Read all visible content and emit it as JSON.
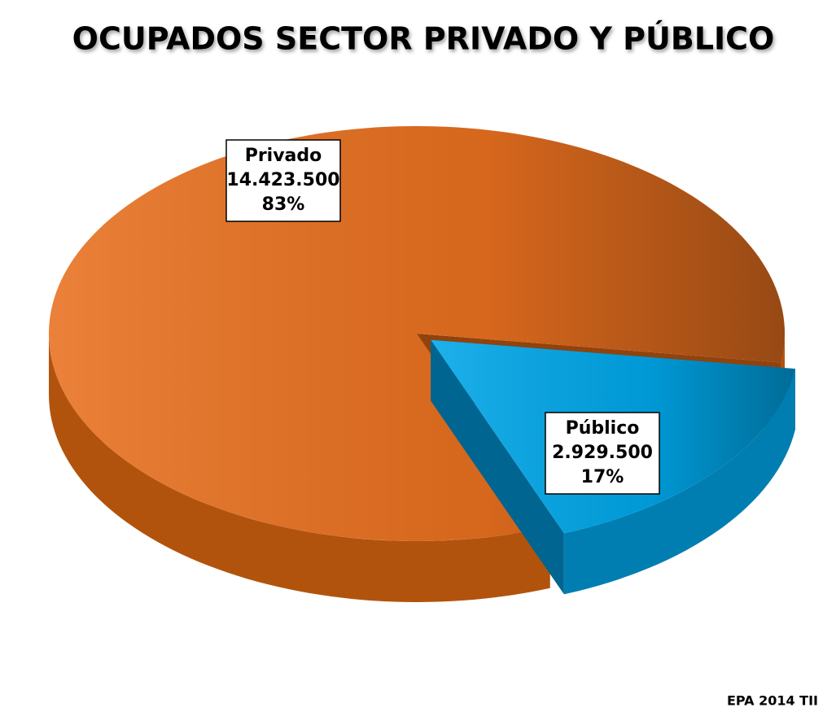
{
  "chart_data": {
    "type": "pie3d",
    "title": "OCUPADOS SECTOR PRIVADO Y PÚBLICO",
    "categories": [
      "Privado",
      "Público"
    ],
    "values": [
      14423500,
      2929500
    ],
    "value_labels": [
      "14.423.500",
      "2.929.500"
    ],
    "percent_labels": [
      "83%",
      "17%"
    ],
    "colors": [
      "#e8701f",
      "#00a6e8"
    ],
    "note": "EPA 2014 TII"
  }
}
